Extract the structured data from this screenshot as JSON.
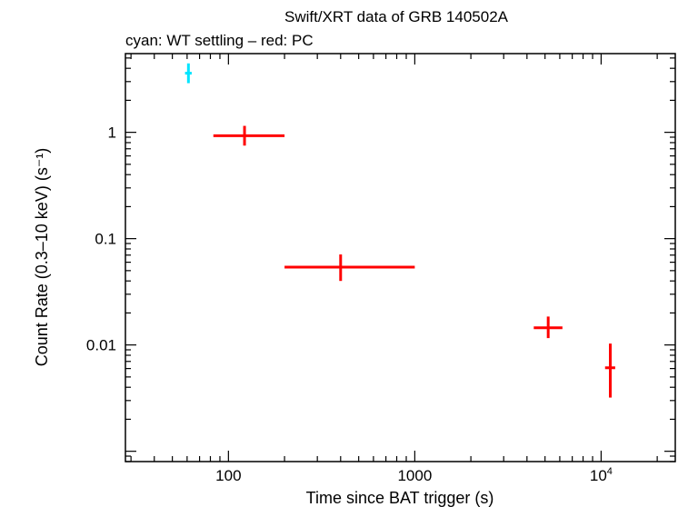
{
  "chart_data": {
    "type": "scatter",
    "title": "Swift/XRT data of GRB 140502A",
    "subtitle": "cyan: WT settling – red: PC",
    "xlabel": "Time since BAT trigger (s)",
    "ylabel": "Count Rate (0.3–10 keV) (s⁻¹)",
    "xscale": "log",
    "yscale": "log",
    "xlim": [
      28,
      25000
    ],
    "ylim": [
      0.0008,
      5.5
    ],
    "x_ticks": [
      {
        "value": 100,
        "base": "100",
        "exp": ""
      },
      {
        "value": 1000,
        "base": "1000",
        "exp": ""
      },
      {
        "value": 10000,
        "base": "10",
        "exp": "4"
      }
    ],
    "y_ticks": [
      {
        "value": 1,
        "label": "1"
      },
      {
        "value": 0.1,
        "label": "0.1"
      },
      {
        "value": 0.01,
        "label": "0.01"
      }
    ],
    "grid": false,
    "series": [
      {
        "name": "WT settling",
        "color": "#00e5ff",
        "points": [
          {
            "x": 61,
            "y": 3.6,
            "xlo": 58.5,
            "xhi": 63.5,
            "ylo": 2.9,
            "yhi": 4.45
          }
        ]
      },
      {
        "name": "PC",
        "color": "#ff0000",
        "points": [
          {
            "x": 122,
            "y": 0.93,
            "xlo": 83,
            "xhi": 200,
            "ylo": 0.75,
            "yhi": 1.15
          },
          {
            "x": 400,
            "y": 0.054,
            "xlo": 200,
            "xhi": 1000,
            "ylo": 0.04,
            "yhi": 0.071
          },
          {
            "x": 5200,
            "y": 0.0145,
            "xlo": 4350,
            "xhi": 6200,
            "ylo": 0.0116,
            "yhi": 0.0185
          },
          {
            "x": 11200,
            "y": 0.0061,
            "xlo": 10500,
            "xhi": 11900,
            "ylo": 0.0032,
            "yhi": 0.0103
          }
        ]
      }
    ]
  }
}
